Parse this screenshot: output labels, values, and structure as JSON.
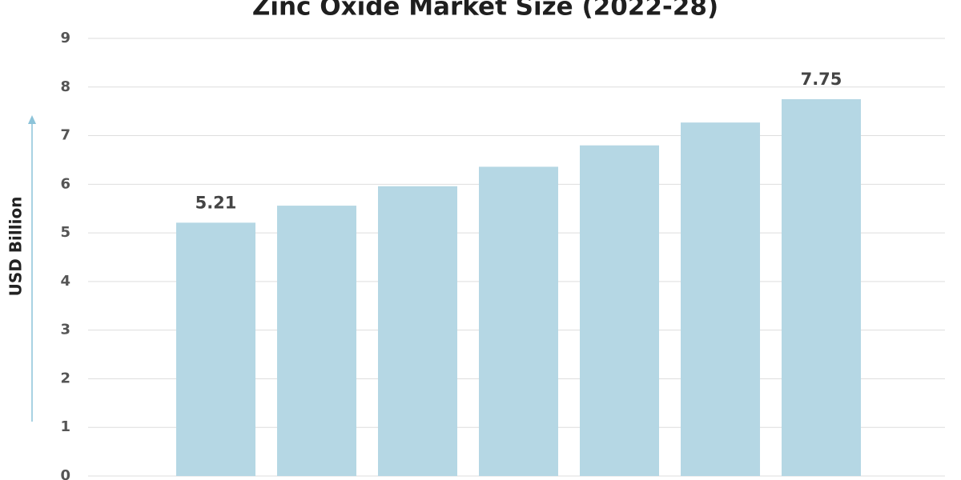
{
  "chart_data": {
    "type": "bar",
    "title": "Zinc Oxide Market Size (2022-28)",
    "y_label": "USD Billion",
    "categories": [
      null,
      null,
      null,
      null,
      null,
      null,
      null
    ],
    "values": [
      5.21,
      5.56,
      5.96,
      6.36,
      6.8,
      7.27,
      7.75
    ],
    "value_labels": [
      "5.21",
      null,
      null,
      null,
      null,
      null,
      "7.75"
    ],
    "color": "#b5d7e4",
    "ylim": [
      0,
      9
    ],
    "yticks": [
      0,
      1,
      2,
      3,
      4,
      5,
      6,
      7,
      8,
      9
    ],
    "grid": true
  }
}
